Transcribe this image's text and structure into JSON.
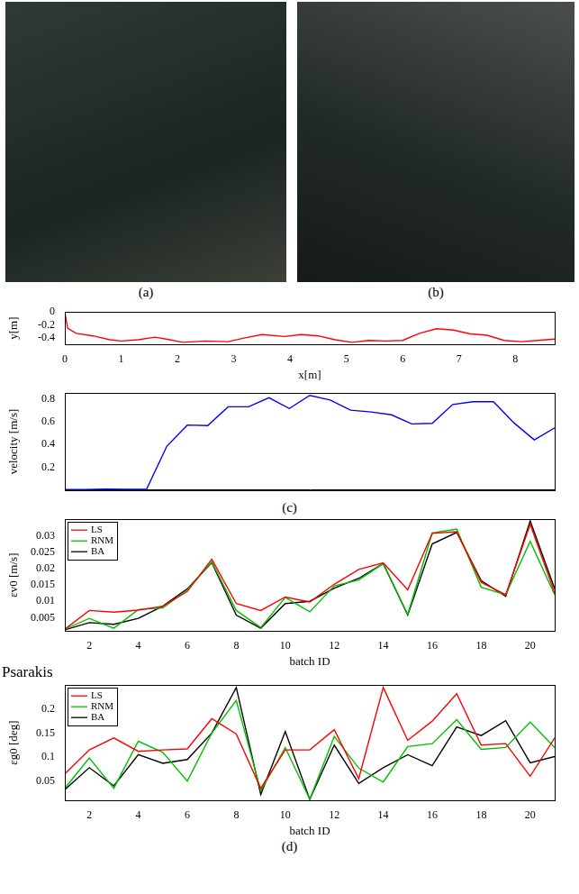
{
  "images": [
    {
      "caption": "(a)"
    },
    {
      "caption": "(b)"
    }
  ],
  "header_text": "Psarakis",
  "chart_data": [
    {
      "type": "line",
      "x_label": "x[m]",
      "y_label": "y[m]",
      "x": [
        0,
        0.05,
        0.2,
        0.5,
        0.8,
        1,
        1.3,
        1.6,
        1.8,
        2.1,
        2.5,
        2.9,
        3.2,
        3.5,
        3.9,
        4.2,
        4.5,
        4.8,
        5.1,
        5.4,
        5.7,
        6.0,
        6.3,
        6.6,
        6.9,
        7.2,
        7.5,
        7.8,
        8.1,
        8.4,
        8.7
      ],
      "values": [
        0,
        -0.25,
        -0.33,
        -0.37,
        -0.43,
        -0.45,
        -0.43,
        -0.39,
        -0.42,
        -0.47,
        -0.45,
        -0.46,
        -0.4,
        -0.35,
        -0.38,
        -0.35,
        -0.37,
        -0.43,
        -0.47,
        -0.44,
        -0.45,
        -0.44,
        -0.33,
        -0.26,
        -0.28,
        -0.34,
        -0.36,
        -0.44,
        -0.46,
        -0.44,
        -0.42
      ],
      "color": "#ff0000",
      "xlim": [
        0,
        8.7
      ],
      "xticks": [
        0,
        1,
        2,
        3,
        4,
        5,
        6,
        7,
        8
      ],
      "ylim": [
        -0.5,
        0
      ],
      "yticks": [
        -0.4,
        -0.2,
        0
      ],
      "grid": false
    },
    {
      "type": "line",
      "y_label": "velocity [m/s]",
      "caption": "(c)",
      "values": [
        0.005,
        0.005,
        0.008,
        0.007,
        0.006,
        0.385,
        0.57,
        0.565,
        0.73,
        0.73,
        0.81,
        0.715,
        0.83,
        0.79,
        0.7,
        0.685,
        0.66,
        0.58,
        0.585,
        0.75,
        0.775,
        0.775,
        0.59,
        0.44,
        0.545
      ],
      "color": "#0000ff",
      "ylim": [
        0,
        0.85
      ],
      "yticks": [
        0.2,
        0.4,
        0.6,
        0.8
      ],
      "tick_labels": "y",
      "grid": false
    },
    {
      "type": "line",
      "x_label": "batch ID",
      "y_label": "εv0 [m/s]",
      "x": [
        1,
        2,
        3,
        4,
        5,
        6,
        7,
        8,
        9,
        10,
        11,
        12,
        13,
        14,
        15,
        16,
        17,
        18,
        19,
        20,
        21
      ],
      "series": [
        {
          "name": "LS",
          "color": "#ff0000",
          "values": [
            0.0015,
            0.0072,
            0.0067,
            0.0073,
            0.0085,
            0.013,
            0.0228,
            0.0093,
            0.0072,
            0.0113,
            0.0098,
            0.0152,
            0.0197,
            0.0217,
            0.0135,
            0.0307,
            0.0312,
            0.0158,
            0.012,
            0.0335,
            0.0125
          ]
        },
        {
          "name": "RNM",
          "color": "#00c000",
          "values": [
            0.0015,
            0.0048,
            0.0018,
            0.0075,
            0.008,
            0.0135,
            0.022,
            0.0072,
            0.002,
            0.0112,
            0.0068,
            0.0147,
            0.0165,
            0.0215,
            0.006,
            0.0308,
            0.032,
            0.0143,
            0.012,
            0.0283,
            0.012
          ]
        },
        {
          "name": "BA",
          "color": "#000000",
          "values": [
            0.0013,
            0.0035,
            0.003,
            0.0048,
            0.0085,
            0.0138,
            0.0218,
            0.0058,
            0.0018,
            0.0093,
            0.01,
            0.014,
            0.017,
            0.0215,
            0.0058,
            0.0275,
            0.031,
            0.0163,
            0.0115,
            0.0345,
            0.0138
          ]
        }
      ],
      "xlim": [
        1,
        21
      ],
      "xticks": [
        2,
        4,
        6,
        8,
        10,
        12,
        14,
        16,
        18,
        20
      ],
      "ylim": [
        0.001,
        0.035
      ],
      "yticks": [
        0.005,
        0.01,
        0.015,
        0.02,
        0.025,
        0.03
      ],
      "legend": "top-left",
      "grid": false
    },
    {
      "type": "line",
      "x_label": "batch ID",
      "y_label": "εg0 [deg]",
      "caption": "(d)",
      "x": [
        1,
        2,
        3,
        4,
        5,
        6,
        7,
        8,
        9,
        10,
        11,
        12,
        13,
        14,
        15,
        16,
        17,
        18,
        19,
        20,
        21
      ],
      "series": [
        {
          "name": "LS",
          "color": "#ff0000",
          "values": [
            0.065,
            0.115,
            0.14,
            0.112,
            0.115,
            0.117,
            0.18,
            0.148,
            0.035,
            0.115,
            0.115,
            0.157,
            0.055,
            0.245,
            0.135,
            0.175,
            0.232,
            0.125,
            0.128,
            0.06,
            0.14
          ]
        },
        {
          "name": "RNM",
          "color": "#00c000",
          "values": [
            0.035,
            0.098,
            0.035,
            0.133,
            0.11,
            0.05,
            0.15,
            0.218,
            0.03,
            0.12,
            0.012,
            0.143,
            0.077,
            0.048,
            0.122,
            0.128,
            0.178,
            0.116,
            0.12,
            0.173,
            0.12
          ]
        },
        {
          "name": "BA",
          "color": "#000000",
          "values": [
            0.032,
            0.078,
            0.04,
            0.105,
            0.087,
            0.095,
            0.15,
            0.245,
            0.022,
            0.153,
            0.012,
            0.125,
            0.045,
            0.078,
            0.105,
            0.082,
            0.163,
            0.145,
            0.176,
            0.088,
            0.101
          ]
        }
      ],
      "xlim": [
        1,
        21
      ],
      "xticks": [
        2,
        4,
        6,
        8,
        10,
        12,
        14,
        16,
        18,
        20
      ],
      "ylim": [
        0.01,
        0.25
      ],
      "yticks": [
        0.05,
        0.1,
        0.15,
        0.2
      ],
      "legend": "top-left",
      "grid": false
    }
  ]
}
